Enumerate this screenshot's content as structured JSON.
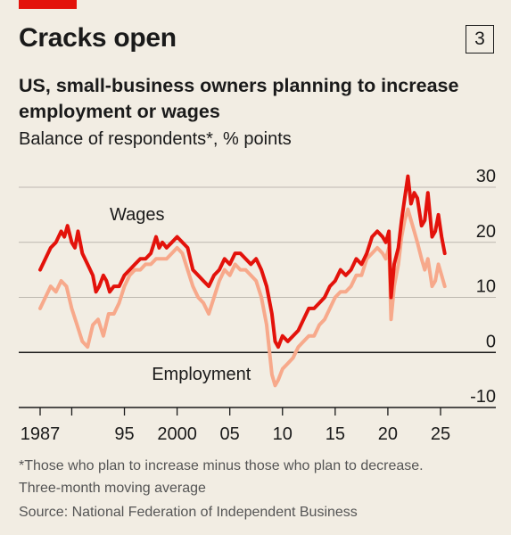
{
  "header": {
    "title": "Cracks open",
    "chart_number": "3",
    "subtitle": "US, small-business owners planning to increase employment or wages",
    "units": "Balance of respondents*, % points"
  },
  "footnotes": {
    "note_1": "*Those who plan to increase minus those who plan to decrease.",
    "note_2": "Three-month moving average",
    "source": "Source: National Federation of Independent Business"
  },
  "colors": {
    "accent": "#e3120b",
    "wages": "#e3120b",
    "employment": "#f7a98b",
    "grid": "#bdb8b0",
    "zero_line": "#1a1a1a",
    "background": "#f2ede3"
  },
  "chart_data": {
    "type": "line",
    "xlim": [
      1987,
      2025.8
    ],
    "ylim": [
      -10,
      30
    ],
    "y_ticks": [
      30,
      20,
      10,
      0,
      -10
    ],
    "x_tick_labels": [
      {
        "x": 1987,
        "label": "1987"
      },
      {
        "x": 1995,
        "label": "95"
      },
      {
        "x": 2000,
        "label": "2000"
      },
      {
        "x": 2005,
        "label": "05"
      },
      {
        "x": 2010,
        "label": "10"
      },
      {
        "x": 2015,
        "label": "15"
      },
      {
        "x": 2020,
        "label": "20"
      },
      {
        "x": 2025,
        "label": "25"
      }
    ],
    "x_minor_ticks": [
      1990
    ],
    "grid": "horizontal",
    "series": [
      {
        "name": "Wages",
        "color": "#e3120b",
        "points": [
          [
            1987.0,
            15
          ],
          [
            1987.5,
            17
          ],
          [
            1988.0,
            19
          ],
          [
            1988.5,
            20
          ],
          [
            1989.0,
            22
          ],
          [
            1989.3,
            21
          ],
          [
            1989.6,
            23
          ],
          [
            1990.0,
            20
          ],
          [
            1990.3,
            19
          ],
          [
            1990.6,
            22
          ],
          [
            1991.0,
            18
          ],
          [
            1991.5,
            16
          ],
          [
            1992.0,
            14
          ],
          [
            1992.3,
            11
          ],
          [
            1992.6,
            12
          ],
          [
            1993.0,
            14
          ],
          [
            1993.3,
            13
          ],
          [
            1993.6,
            11
          ],
          [
            1994.0,
            12
          ],
          [
            1994.5,
            12
          ],
          [
            1995.0,
            14
          ],
          [
            1995.5,
            15
          ],
          [
            1996.0,
            16
          ],
          [
            1996.5,
            17
          ],
          [
            1997.0,
            17
          ],
          [
            1997.5,
            18
          ],
          [
            1998.0,
            21
          ],
          [
            1998.3,
            19
          ],
          [
            1998.6,
            20
          ],
          [
            1999.0,
            19
          ],
          [
            1999.5,
            20
          ],
          [
            2000.0,
            21
          ],
          [
            2000.5,
            20
          ],
          [
            2001.0,
            19
          ],
          [
            2001.5,
            15
          ],
          [
            2002.0,
            14
          ],
          [
            2002.5,
            13
          ],
          [
            2003.0,
            12
          ],
          [
            2003.5,
            14
          ],
          [
            2004.0,
            15
          ],
          [
            2004.5,
            17
          ],
          [
            2005.0,
            16
          ],
          [
            2005.5,
            18
          ],
          [
            2006.0,
            18
          ],
          [
            2006.5,
            17
          ],
          [
            2007.0,
            16
          ],
          [
            2007.5,
            17
          ],
          [
            2008.0,
            15
          ],
          [
            2008.5,
            12
          ],
          [
            2009.0,
            7
          ],
          [
            2009.3,
            2
          ],
          [
            2009.6,
            1
          ],
          [
            2010.0,
            3
          ],
          [
            2010.5,
            2
          ],
          [
            2011.0,
            3
          ],
          [
            2011.5,
            4
          ],
          [
            2012.0,
            6
          ],
          [
            2012.5,
            8
          ],
          [
            2013.0,
            8
          ],
          [
            2013.5,
            9
          ],
          [
            2014.0,
            10
          ],
          [
            2014.5,
            12
          ],
          [
            2015.0,
            13
          ],
          [
            2015.5,
            15
          ],
          [
            2016.0,
            14
          ],
          [
            2016.5,
            15
          ],
          [
            2017.0,
            17
          ],
          [
            2017.5,
            16
          ],
          [
            2018.0,
            18
          ],
          [
            2018.5,
            21
          ],
          [
            2019.0,
            22
          ],
          [
            2019.5,
            21
          ],
          [
            2019.8,
            20
          ],
          [
            2020.1,
            22
          ],
          [
            2020.3,
            10
          ],
          [
            2020.6,
            16
          ],
          [
            2021.0,
            19
          ],
          [
            2021.3,
            24
          ],
          [
            2021.6,
            28
          ],
          [
            2021.9,
            32
          ],
          [
            2022.2,
            27
          ],
          [
            2022.5,
            29
          ],
          [
            2022.8,
            28
          ],
          [
            2023.2,
            23
          ],
          [
            2023.5,
            24
          ],
          [
            2023.8,
            29
          ],
          [
            2024.2,
            21
          ],
          [
            2024.5,
            22
          ],
          [
            2024.8,
            25
          ],
          [
            2025.1,
            21
          ],
          [
            2025.4,
            18
          ]
        ]
      },
      {
        "name": "Employment",
        "color": "#f7a98b",
        "points": [
          [
            1987.0,
            8
          ],
          [
            1987.5,
            10
          ],
          [
            1988.0,
            12
          ],
          [
            1988.5,
            11
          ],
          [
            1989.0,
            13
          ],
          [
            1989.5,
            12
          ],
          [
            1990.0,
            8
          ],
          [
            1990.5,
            5
          ],
          [
            1991.0,
            2
          ],
          [
            1991.5,
            1
          ],
          [
            1992.0,
            5
          ],
          [
            1992.5,
            6
          ],
          [
            1993.0,
            3
          ],
          [
            1993.5,
            7
          ],
          [
            1994.0,
            7
          ],
          [
            1994.5,
            9
          ],
          [
            1995.0,
            12
          ],
          [
            1995.5,
            14
          ],
          [
            1996.0,
            15
          ],
          [
            1996.5,
            15
          ],
          [
            1997.0,
            16
          ],
          [
            1997.5,
            16
          ],
          [
            1998.0,
            17
          ],
          [
            1998.5,
            17
          ],
          [
            1999.0,
            17
          ],
          [
            1999.5,
            18
          ],
          [
            2000.0,
            19
          ],
          [
            2000.5,
            18
          ],
          [
            2001.0,
            15
          ],
          [
            2001.5,
            12
          ],
          [
            2002.0,
            10
          ],
          [
            2002.5,
            9
          ],
          [
            2003.0,
            7
          ],
          [
            2003.5,
            10
          ],
          [
            2004.0,
            13
          ],
          [
            2004.5,
            15
          ],
          [
            2005.0,
            14
          ],
          [
            2005.5,
            16
          ],
          [
            2006.0,
            15
          ],
          [
            2006.5,
            15
          ],
          [
            2007.0,
            14
          ],
          [
            2007.5,
            13
          ],
          [
            2008.0,
            10
          ],
          [
            2008.5,
            5
          ],
          [
            2009.0,
            -4
          ],
          [
            2009.3,
            -6
          ],
          [
            2009.6,
            -5
          ],
          [
            2010.0,
            -3
          ],
          [
            2010.5,
            -2
          ],
          [
            2011.0,
            -1
          ],
          [
            2011.5,
            1
          ],
          [
            2012.0,
            2
          ],
          [
            2012.5,
            3
          ],
          [
            2013.0,
            3
          ],
          [
            2013.5,
            5
          ],
          [
            2014.0,
            6
          ],
          [
            2014.5,
            8
          ],
          [
            2015.0,
            10
          ],
          [
            2015.5,
            11
          ],
          [
            2016.0,
            11
          ],
          [
            2016.5,
            12
          ],
          [
            2017.0,
            14
          ],
          [
            2017.5,
            14
          ],
          [
            2018.0,
            17
          ],
          [
            2018.5,
            18
          ],
          [
            2019.0,
            19
          ],
          [
            2019.5,
            18
          ],
          [
            2019.8,
            17
          ],
          [
            2020.1,
            19
          ],
          [
            2020.3,
            6
          ],
          [
            2020.6,
            12
          ],
          [
            2021.0,
            16
          ],
          [
            2021.3,
            21
          ],
          [
            2021.6,
            24
          ],
          [
            2021.9,
            26
          ],
          [
            2022.2,
            24
          ],
          [
            2022.5,
            22
          ],
          [
            2022.8,
            20
          ],
          [
            2023.2,
            17
          ],
          [
            2023.5,
            15
          ],
          [
            2023.8,
            17
          ],
          [
            2024.2,
            12
          ],
          [
            2024.5,
            13
          ],
          [
            2024.8,
            16
          ],
          [
            2025.1,
            14
          ],
          [
            2025.4,
            12
          ]
        ]
      }
    ],
    "annotations": [
      {
        "text": "Wages",
        "x": 1996.2,
        "y": 24
      },
      {
        "text": "Employment",
        "x": 2002.3,
        "y": -5
      }
    ]
  }
}
